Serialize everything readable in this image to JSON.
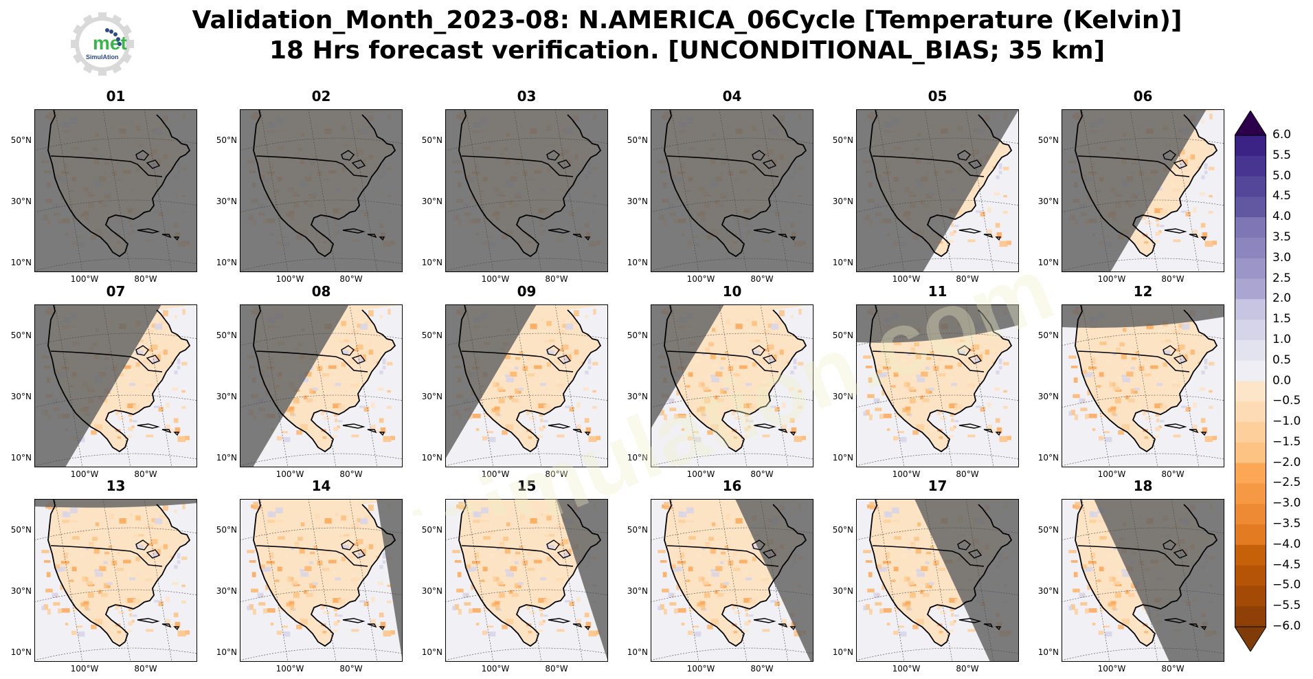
{
  "title": {
    "line1": "Validation_Month_2023-08: N.AMERICA_06Cycle [Temperature (Kelvin)]",
    "line2": "18 Hrs forecast verification. [UNCONDITIONAL_BIAS; 35 km]"
  },
  "logo": {
    "text": "met",
    "subtext": "SimulAtion",
    "watermark": "metsimulation.com"
  },
  "chart_data": {
    "type": "heatmap",
    "panels": [
      "01",
      "02",
      "03",
      "04",
      "05",
      "06",
      "07",
      "08",
      "09",
      "10",
      "11",
      "12",
      "13",
      "14",
      "15",
      "16",
      "17",
      "18"
    ],
    "y_ticks": [
      "50°N",
      "30°N",
      "10°N"
    ],
    "x_ticks": [
      "100°W",
      "80°W"
    ],
    "colorbar": {
      "min": -6.0,
      "max": 6.0,
      "step": 0.5,
      "extend": "both",
      "ticks": [
        "6.0",
        "5.5",
        "5.0",
        "4.5",
        "4.0",
        "3.5",
        "3.0",
        "2.5",
        "2.0",
        "1.5",
        "1.0",
        "0.5",
        "0.0",
        "−0.5",
        "−1.0",
        "−1.5",
        "−2.0",
        "−2.5",
        "−3.0",
        "−3.5",
        "−4.0",
        "−4.5",
        "−5.0",
        "−5.5",
        "−6.0"
      ],
      "colors_positive_low_to_high": [
        "#f7f7f7",
        "#efeef5",
        "#e3e2ef",
        "#d5d4e8",
        "#c7c5e1",
        "#b9b6da",
        "#aba6d1",
        "#9c96c8",
        "#8d86be",
        "#7f77b5",
        "#7067ab",
        "#6257a1",
        "#54479a",
        "#473591",
        "#3b2386",
        "#2d004b"
      ],
      "colors_negative_high_to_low": [
        "#fdefdd",
        "#fde5c9",
        "#fddbb4",
        "#fdcf9b",
        "#fdc383",
        "#fdb56b",
        "#fba756",
        "#f59944",
        "#ed8a33",
        "#e27b22",
        "#d56d13",
        "#c66009",
        "#b55406",
        "#a34a06",
        "#8f4006",
        "#7f3b08"
      ]
    },
    "night_shade_color": "#666666",
    "land_base_color": "#b07a44",
    "ocean_base_color": "#f1f1f5"
  }
}
